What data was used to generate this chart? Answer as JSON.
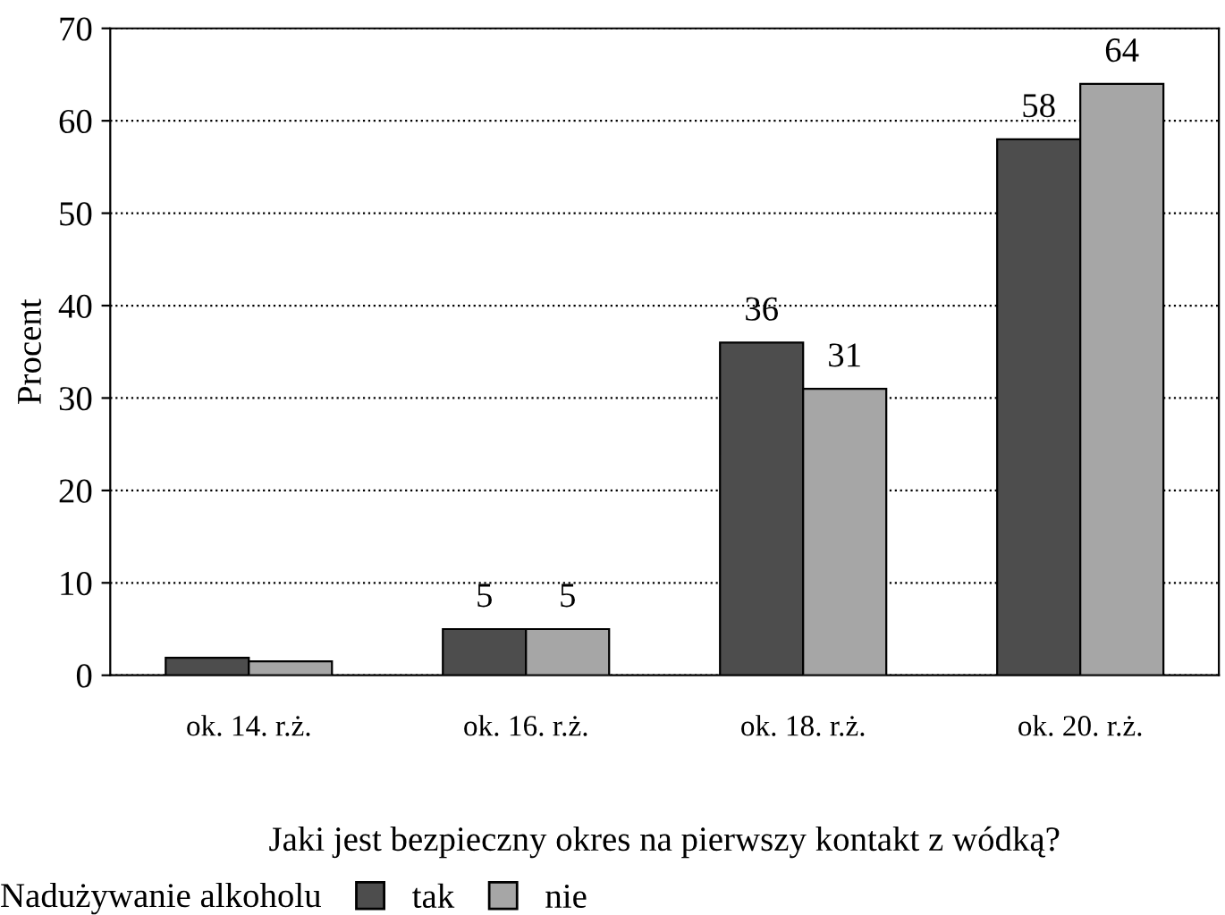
{
  "chart_data": {
    "type": "bar",
    "xlabel": "Jaki jest bezpieczny okres na pierwszy kontakt z wódką?",
    "ylabel": "Procent",
    "legend_title": "Nadużywanie alkoholu",
    "categories": [
      "ok. 14. r.ż.",
      "ok. 16. r.ż.",
      "ok. 18. r.ż.",
      "ok. 20. r.ż."
    ],
    "series": [
      {
        "name": "tak",
        "color": "#4d4d4d",
        "values": [
          1.9,
          5,
          36,
          58
        ],
        "value_labels": [
          null,
          "5",
          "36",
          "58"
        ]
      },
      {
        "name": "nie",
        "color": "#a6a6a6",
        "values": [
          1.5,
          5,
          31,
          64
        ],
        "value_labels": [
          null,
          "5",
          "31",
          "64"
        ]
      }
    ],
    "ylim": [
      0,
      70
    ],
    "yticks": [
      0,
      10,
      20,
      30,
      40,
      50,
      60,
      70
    ],
    "grid": "y",
    "legend": "bottom"
  }
}
